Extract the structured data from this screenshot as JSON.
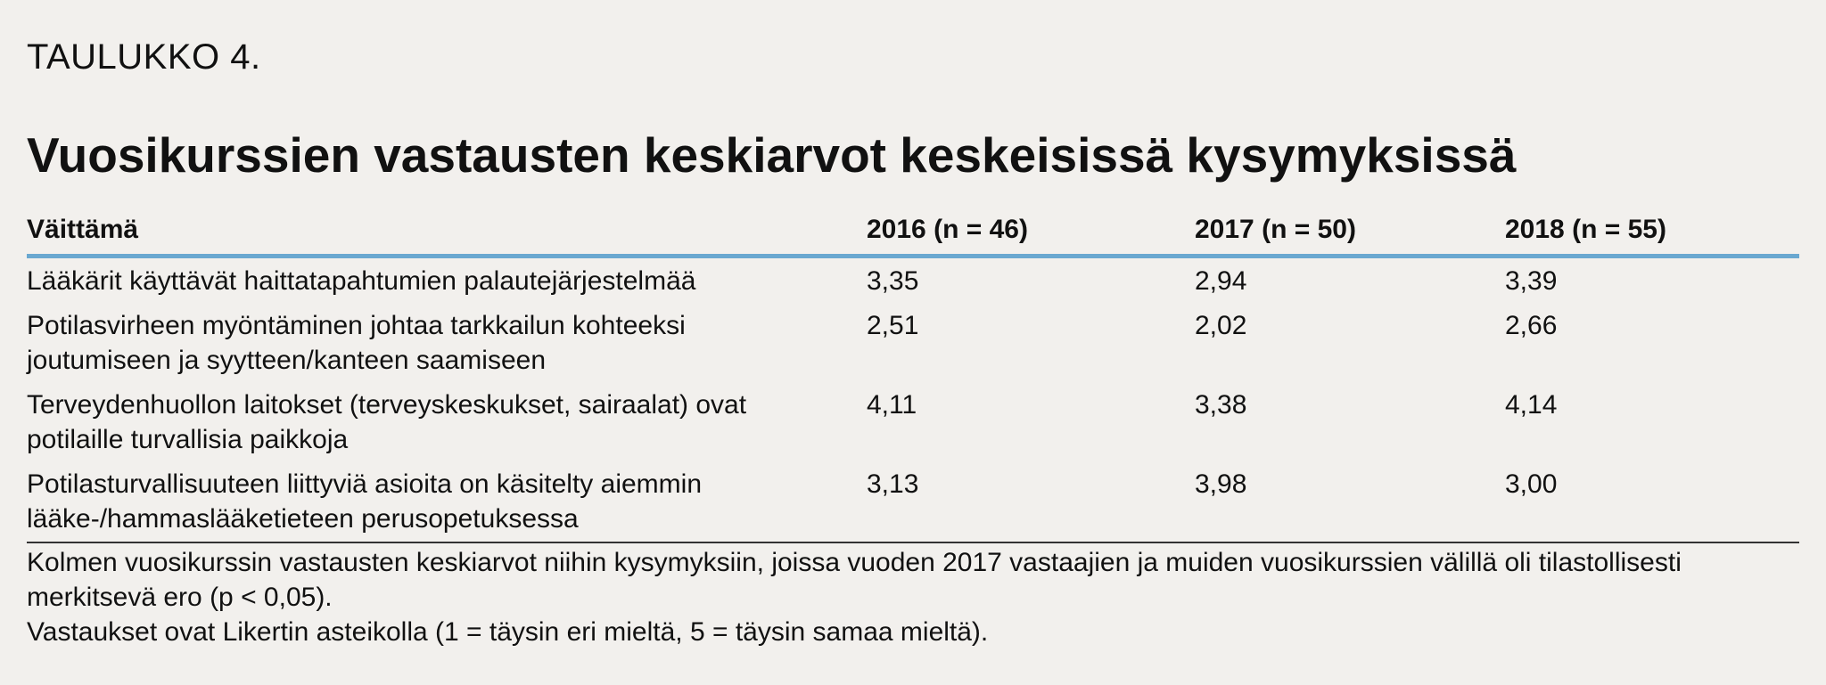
{
  "label": "TAULUKKO 4.",
  "title": "Vuosikurssien vastausten keskiarvot keskeisissä kysymyksissä",
  "table": {
    "headers": [
      "Väittämä",
      "2016 (n = 46)",
      "2017 (n = 50)",
      "2018 (n = 55)"
    ],
    "rows": [
      {
        "statement": "Lääkärit käyttävät haittatapahtumien palautejärjestelmää",
        "v2016": "3,35",
        "v2017": "2,94",
        "v2018": "3,39"
      },
      {
        "statement": "Potilasvirheen myöntäminen johtaa tarkkailun kohteeksi joutumiseen ja syytteen/kanteen saamiseen",
        "v2016": "2,51",
        "v2017": "2,02",
        "v2018": "2,66"
      },
      {
        "statement": "Terveydenhuollon laitokset (terveyskeskukset, sairaalat) ovat potilaille turvallisia paikkoja",
        "v2016": "4,11",
        "v2017": "3,38",
        "v2018": "4,14"
      },
      {
        "statement": "Potilasturvallisuuteen liittyviä asioita on käsitelty aiemmin lääke-/hammaslääketieteen perusopetuksessa",
        "v2016": "3,13",
        "v2017": "3,98",
        "v2018": "3,00"
      }
    ]
  },
  "notes": [
    "Kolmen vuosikurssin vastausten keskiarvot niihin kysymyksiin, joissa vuoden 2017 vastaajien ja muiden vuosikurssien välillä oli tilastollisesti merkitsevä ero (p < 0,05).",
    "Vastaukset ovat Likertin asteikolla (1 = täysin eri mieltä, 5 = täysin samaa mieltä)."
  ]
}
